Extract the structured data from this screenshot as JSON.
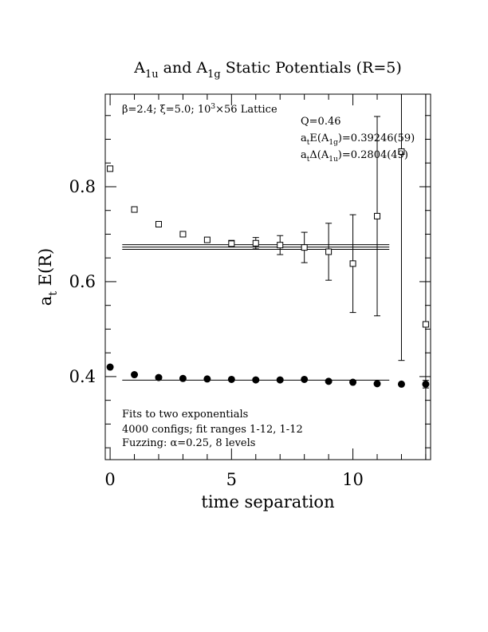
{
  "chart_data": {
    "type": "scatter",
    "title": {
      "parts": [
        {
          "t": "A",
          "s": "n"
        },
        {
          "t": "1u",
          "s": "sub"
        },
        {
          "t": " and A",
          "s": "n"
        },
        {
          "t": "1g",
          "s": "sub"
        },
        {
          "t": " Static Potentials (R=5)",
          "s": "n"
        }
      ]
    },
    "xlabel": "time separation",
    "ylabel": {
      "parts": [
        {
          "t": "a",
          "s": "n"
        },
        {
          "t": "t",
          "s": "sub"
        },
        {
          "t": " E(R)",
          "s": "n"
        }
      ]
    },
    "xlim": [
      -0.2,
      13.2
    ],
    "ylim": [
      0.225,
      0.995
    ],
    "x_ticks": [
      {
        "v": 0,
        "label": "0"
      },
      {
        "v": 5,
        "label": "5"
      },
      {
        "v": 10,
        "label": "10"
      }
    ],
    "y_ticks": [
      {
        "v": 0.4,
        "label": "0.4"
      },
      {
        "v": 0.6,
        "label": "0.6"
      },
      {
        "v": 0.8,
        "label": "0.8"
      }
    ],
    "x_minor_step": 1,
    "y_minor_step": 0.05,
    "annotations": {
      "lattice": {
        "parts": [
          {
            "t": "β=2.4; ξ=5.0; 10",
            "s": "n"
          },
          {
            "t": "3",
            "s": "sup"
          },
          {
            "t": "×56 Lattice",
            "s": "n"
          }
        ]
      },
      "q": {
        "parts": [
          {
            "t": "Q=0.46",
            "s": "n"
          }
        ]
      },
      "energy": {
        "parts": [
          {
            "t": "a",
            "s": "n"
          },
          {
            "t": "t",
            "s": "sub"
          },
          {
            "t": "E(A",
            "s": "n"
          },
          {
            "t": "1g",
            "s": "sub"
          },
          {
            "t": ")=0.39246(59)",
            "s": "n"
          }
        ]
      },
      "gap": {
        "parts": [
          {
            "t": "a",
            "s": "n"
          },
          {
            "t": "t",
            "s": "sub"
          },
          {
            "t": "Δ(A",
            "s": "n"
          },
          {
            "t": "1u",
            "s": "sub"
          },
          {
            "t": ")=0.2804(49)",
            "s": "n"
          }
        ]
      },
      "fit_title": "Fits to two exponentials",
      "fit_details": "4000 configs; fit ranges 1-12, 1-12",
      "fuzzing": "Fuzzing: α=0.25, 8 levels"
    },
    "series": [
      {
        "marker": "open-square",
        "points": [
          {
            "x": 0,
            "y": 0.838,
            "err": 0.004
          },
          {
            "x": 1,
            "y": 0.752,
            "err": 0.004
          },
          {
            "x": 2,
            "y": 0.721,
            "err": 0.004
          },
          {
            "x": 3,
            "y": 0.7,
            "err": 0.004
          },
          {
            "x": 4,
            "y": 0.688,
            "err": 0.005
          },
          {
            "x": 5,
            "y": 0.68,
            "err": 0.007
          },
          {
            "x": 6,
            "y": 0.681,
            "err": 0.012
          },
          {
            "x": 7,
            "y": 0.677,
            "err": 0.02
          },
          {
            "x": 8,
            "y": 0.672,
            "err": 0.032
          },
          {
            "x": 9,
            "y": 0.663,
            "err": 0.06
          },
          {
            "x": 10,
            "y": 0.638,
            "err": 0.103
          },
          {
            "x": 11,
            "y": 0.738,
            "err": 0.21
          },
          {
            "x": 12,
            "y": 0.874,
            "err": 0.44
          },
          {
            "x": 13,
            "y": 0.51,
            "err": 0.6
          }
        ],
        "fit": {
          "x_range": [
            0.5,
            11.5
          ],
          "value": 0.6729,
          "band": 0.0049
        }
      },
      {
        "marker": "filled-circle",
        "points": [
          {
            "x": 0,
            "y": 0.42,
            "err": 0.002
          },
          {
            "x": 1,
            "y": 0.404,
            "err": 0.002
          },
          {
            "x": 2,
            "y": 0.398,
            "err": 0.002
          },
          {
            "x": 3,
            "y": 0.396,
            "err": 0.002
          },
          {
            "x": 4,
            "y": 0.395,
            "err": 0.002
          },
          {
            "x": 5,
            "y": 0.394,
            "err": 0.002
          },
          {
            "x": 6,
            "y": 0.393,
            "err": 0.002
          },
          {
            "x": 7,
            "y": 0.393,
            "err": 0.002
          },
          {
            "x": 8,
            "y": 0.394,
            "err": 0.003
          },
          {
            "x": 9,
            "y": 0.39,
            "err": 0.004
          },
          {
            "x": 10,
            "y": 0.388,
            "err": 0.004
          },
          {
            "x": 11,
            "y": 0.385,
            "err": 0.005
          },
          {
            "x": 12,
            "y": 0.384,
            "err": 0.006
          },
          {
            "x": 13,
            "y": 0.384,
            "err": 0.008
          }
        ],
        "fit": {
          "x_range": [
            0.5,
            11.5
          ],
          "value": 0.39246,
          "band": 0.00059
        }
      }
    ]
  }
}
